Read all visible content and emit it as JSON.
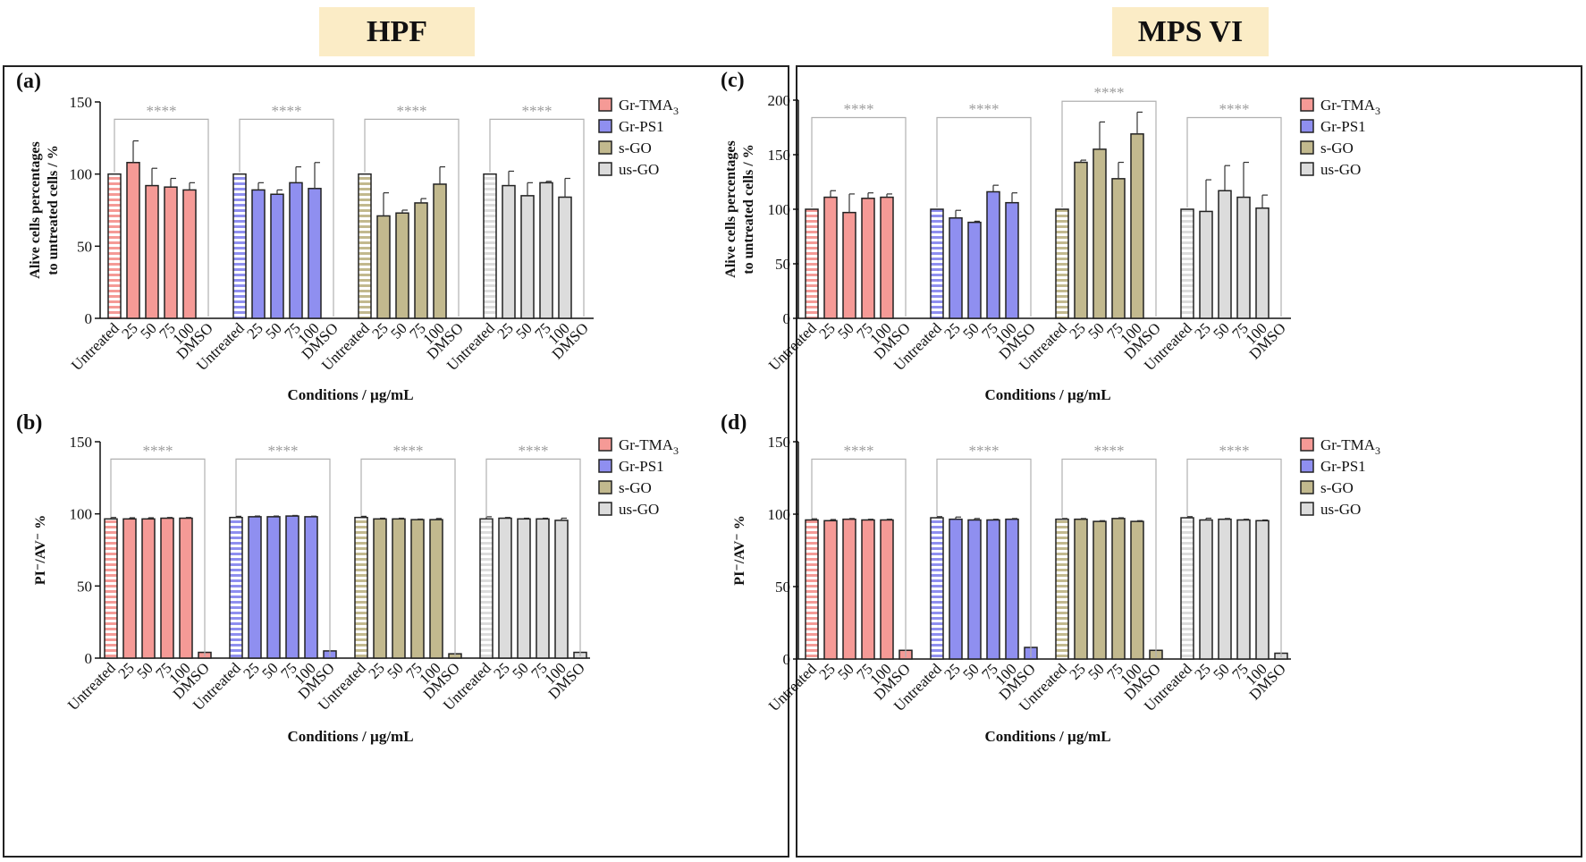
{
  "headers": {
    "left": "HPF",
    "right": "MPS VI"
  },
  "colors": {
    "Gr-TMA3": "#f59a96",
    "Gr-PS1": "#8f8ff0",
    "s-GO": "#c2b98e",
    "us-GO": "#dcdcdc",
    "bracket": "#b0b0b0",
    "sig": "#9a9a9a"
  },
  "legend": [
    {
      "key": "Gr-TMA3",
      "label_main": "Gr-TMA",
      "label_sub": "3"
    },
    {
      "key": "Gr-PS1",
      "label_main": "Gr-PS1",
      "label_sub": ""
    },
    {
      "key": "s-GO",
      "label_main": "s-GO",
      "label_sub": ""
    },
    {
      "key": "us-GO",
      "label_main": "us-GO",
      "label_sub": ""
    }
  ],
  "chart_data": [
    {
      "panel": "(a)",
      "type": "bar",
      "ylabel": [
        "Alive cells percentages",
        "to untreated cells / %"
      ],
      "xlabel": "Conditions / µg/mL",
      "ylim": [
        0,
        150
      ],
      "yticks": [
        0,
        50,
        100,
        150
      ],
      "categories": [
        "Untreated",
        "25",
        "50",
        "75",
        "100",
        "DMSO"
      ],
      "significance": "****",
      "series": [
        {
          "name": "Gr-TMA3",
          "values": [
            100,
            108,
            92,
            91,
            89,
            0
          ],
          "errors": [
            0,
            15,
            12,
            6,
            5,
            0
          ]
        },
        {
          "name": "Gr-PS1",
          "values": [
            100,
            89,
            86,
            94,
            90,
            0
          ],
          "errors": [
            0,
            5,
            3,
            11,
            18,
            0
          ]
        },
        {
          "name": "s-GO",
          "values": [
            100,
            71,
            73,
            80,
            93,
            0
          ],
          "errors": [
            0,
            16,
            2,
            3,
            12,
            0
          ]
        },
        {
          "name": "us-GO",
          "values": [
            100,
            92,
            85,
            94,
            84,
            0
          ],
          "errors": [
            0,
            10,
            9,
            1,
            13,
            0
          ]
        }
      ]
    },
    {
      "panel": "(b)",
      "type": "bar",
      "ylabel": [
        "PI⁻/AV⁻ %"
      ],
      "xlabel": "Conditions / µg/mL",
      "ylim": [
        0,
        150
      ],
      "yticks": [
        0,
        50,
        100,
        150
      ],
      "categories": [
        "Untreated",
        "25",
        "50",
        "75",
        "100",
        "DMSO"
      ],
      "significance": "****",
      "series": [
        {
          "name": "Gr-TMA3",
          "values": [
            96.5,
            96.5,
            96.5,
            97,
            97,
            4
          ],
          "errors": [
            1,
            0.8,
            0.8,
            0.5,
            0.5,
            0
          ]
        },
        {
          "name": "Gr-PS1",
          "values": [
            97.5,
            98,
            98,
            98.5,
            98,
            5
          ],
          "errors": [
            0.8,
            0.5,
            0.5,
            0.4,
            0.4,
            0
          ]
        },
        {
          "name": "s-GO",
          "values": [
            97.5,
            96.5,
            96.5,
            96,
            96,
            3
          ],
          "errors": [
            0.8,
            0.5,
            0.5,
            0.4,
            0.8,
            0
          ]
        },
        {
          "name": "us-GO",
          "values": [
            96.5,
            97,
            96.5,
            96.5,
            95.5,
            4
          ],
          "errors": [
            1.5,
            0.5,
            0.5,
            0.5,
            1.5,
            0
          ]
        }
      ]
    },
    {
      "panel": "(c)",
      "type": "bar",
      "ylabel": [
        "Alive cells percentages",
        "to untreated cells / %"
      ],
      "xlabel": "Conditions / µg/mL",
      "ylim": [
        0,
        200
      ],
      "yticks": [
        0,
        50,
        100,
        150,
        200
      ],
      "categories": [
        "Untreated",
        "25",
        "50",
        "75",
        "100",
        "DMSO"
      ],
      "significance": "****",
      "series": [
        {
          "name": "Gr-TMA3",
          "values": [
            100,
            111,
            97,
            110,
            111,
            0
          ],
          "errors": [
            0,
            6,
            17,
            5,
            3,
            0
          ]
        },
        {
          "name": "Gr-PS1",
          "values": [
            100,
            92,
            88,
            116,
            106,
            0
          ],
          "errors": [
            0,
            7,
            1,
            6,
            9,
            0
          ]
        },
        {
          "name": "s-GO",
          "values": [
            100,
            143,
            155,
            128,
            169,
            0
          ],
          "errors": [
            0,
            2,
            25,
            15,
            20,
            0
          ]
        },
        {
          "name": "us-GO",
          "values": [
            100,
            98,
            117,
            111,
            101,
            0
          ],
          "errors": [
            0,
            29,
            23,
            32,
            12,
            0
          ]
        }
      ]
    },
    {
      "panel": "(d)",
      "type": "bar",
      "ylabel": [
        "PI⁻/AV⁻ %"
      ],
      "xlabel": "Conditions / µg/mL",
      "ylim": [
        0,
        150
      ],
      "yticks": [
        0,
        50,
        100,
        150
      ],
      "categories": [
        "Untreated",
        "25",
        "50",
        "75",
        "100",
        "DMSO"
      ],
      "significance": "****",
      "series": [
        {
          "name": "Gr-TMA3",
          "values": [
            96,
            95.5,
            96.5,
            96,
            96,
            6
          ],
          "errors": [
            0.8,
            0.8,
            0.5,
            0.5,
            0.5,
            0
          ]
        },
        {
          "name": "Gr-PS1",
          "values": [
            97.5,
            96.5,
            96,
            96,
            96.5,
            8
          ],
          "errors": [
            0.8,
            1.5,
            1,
            0.5,
            0.5,
            0
          ]
        },
        {
          "name": "s-GO",
          "values": [
            96.5,
            96.5,
            95,
            97,
            95,
            6
          ],
          "errors": [
            0.5,
            0.5,
            0.5,
            0.5,
            0.5,
            0
          ]
        },
        {
          "name": "us-GO",
          "values": [
            97.5,
            96,
            96.5,
            96,
            95.5,
            4
          ],
          "errors": [
            0.8,
            1.2,
            0.5,
            0.5,
            0.5,
            0
          ]
        }
      ]
    }
  ]
}
